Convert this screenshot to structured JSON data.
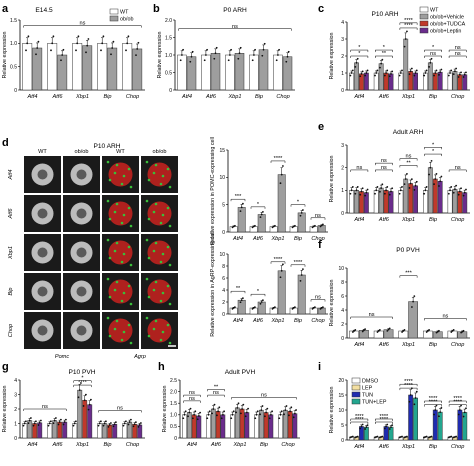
{
  "figure": {
    "micro": {
      "panel_label": "d",
      "title": "P10 ARH",
      "col_labels": [
        "WT",
        "ob/ob",
        "WT",
        "ob/ob"
      ],
      "row_labels": [
        "Atf4",
        "Atf6",
        "Xbp1",
        "Bip",
        "Chop"
      ],
      "bottom_labels": [
        "Pomc",
        "Agrp"
      ]
    }
  },
  "chart_data": [
    {
      "id": "a",
      "type": "bar",
      "panel_label": "a",
      "title": "E14.5",
      "ylabel": "Relative expression",
      "categories": [
        "Atf4",
        "Atf6",
        "Xbp1",
        "Bip",
        "Chop"
      ],
      "ylim": [
        0,
        1.5
      ],
      "yticks": [
        "0",
        "0.5",
        "1.0",
        "1.5"
      ],
      "series": [
        {
          "name": "WT",
          "color": "#ffffff",
          "values": [
            1.0,
            1.0,
            1.0,
            1.0,
            1.0
          ]
        },
        {
          "name": "ob/ob",
          "color": "#9e9e9e",
          "values": [
            0.9,
            0.75,
            0.95,
            0.9,
            0.88
          ]
        }
      ],
      "annotations": [
        {
          "text": "ns",
          "from": 0,
          "to": 4,
          "y": 1.38
        }
      ],
      "legend": {
        "position": "top-right",
        "entries": [
          "WT",
          "ob/ob"
        ]
      }
    },
    {
      "id": "b",
      "type": "bar",
      "panel_label": "b",
      "title": "P0 ARH",
      "ylabel": "Relative expression",
      "categories": [
        "Atf4",
        "Atf6",
        "Xbp1",
        "Bip",
        "Chop"
      ],
      "ylim": [
        0,
        2.0
      ],
      "yticks": [
        "0",
        "0.5",
        "1.0",
        "1.5",
        "2.0"
      ],
      "series": [
        {
          "name": "WT",
          "color": "#ffffff",
          "values": [
            1.0,
            1.0,
            1.0,
            1.0,
            1.0
          ]
        },
        {
          "name": "ob/ob",
          "color": "#9e9e9e",
          "values": [
            0.95,
            1.05,
            1.05,
            1.15,
            0.95
          ]
        }
      ],
      "annotations": [
        {
          "text": "ns",
          "from": 0,
          "to": 4,
          "y": 1.75
        }
      ]
    },
    {
      "id": "c",
      "type": "bar",
      "panel_label": "c",
      "title": "P10 ARH",
      "ylabel": "Relative expression",
      "categories": [
        "Atf4",
        "Atf6",
        "Xbp1",
        "Bip",
        "Chop"
      ],
      "ylim": [
        0,
        4
      ],
      "yticks": [
        "0",
        "1",
        "2",
        "3",
        "4"
      ],
      "series": [
        {
          "name": "WT",
          "color": "#ffffff",
          "values": [
            1.0,
            1.0,
            1.0,
            1.0,
            1.0
          ]
        },
        {
          "name": "ob/ob+Vehicle",
          "color": "#9e9e9e",
          "values": [
            1.6,
            1.55,
            3.0,
            1.6,
            1.1
          ]
        },
        {
          "name": "ob/ob+TUDCA",
          "color": "#c0392b",
          "values": [
            0.95,
            1.0,
            1.1,
            1.0,
            0.9
          ]
        },
        {
          "name": "ob/ob+Leptin",
          "color": "#6a2c8c",
          "values": [
            1.0,
            0.95,
            1.0,
            1.05,
            0.9
          ]
        }
      ],
      "annotations": [
        {
          "text": "*",
          "cat": 0,
          "y": 2.0
        },
        {
          "text": "*",
          "cat": 0,
          "y": 2.35
        },
        {
          "text": "**",
          "cat": 1,
          "y": 2.0
        },
        {
          "text": "*",
          "cat": 1,
          "y": 2.35
        },
        {
          "text": "****",
          "cat": 2,
          "y": 3.65
        },
        {
          "text": "****",
          "cat": 2,
          "y": 3.95
        },
        {
          "text": "ns",
          "cat": 3,
          "y": 2.0
        },
        {
          "text": "*",
          "cat": 3,
          "y": 2.35
        },
        {
          "text": "ns",
          "cat": 4,
          "y": 2.0
        },
        {
          "text": "ns",
          "cat": 4,
          "y": 2.35
        }
      ],
      "legend": {
        "position": "top-right",
        "entries": [
          "WT",
          "ob/ob+Vehicle",
          "ob/ob+TUDCA",
          "ob/ob+Leptin"
        ]
      }
    },
    {
      "id": "d1",
      "type": "bar",
      "panel_label": "",
      "ylabel": "Relative expression in POMC-expressing cell",
      "categories": [
        "Atf4",
        "Atf6",
        "Xbp1",
        "Bip",
        "Chop"
      ],
      "ylim": [
        0,
        15
      ],
      "yticks": [
        "0",
        "5",
        "10",
        "15"
      ],
      "series": [
        {
          "name": "WT",
          "color": "#ffffff",
          "values": [
            1.0,
            1.0,
            1.0,
            1.0,
            1.0
          ]
        },
        {
          "name": "ob/ob",
          "color": "#9e9e9e",
          "values": [
            4.5,
            3.2,
            10.5,
            3.5,
            1.2
          ]
        }
      ],
      "annotations": [
        {
          "text": "***",
          "cat": 0,
          "y": 6.0
        },
        {
          "text": "*",
          "cat": 1,
          "y": 4.6
        },
        {
          "text": "****",
          "cat": 2,
          "y": 13.0
        },
        {
          "text": "*",
          "cat": 3,
          "y": 5.0
        },
        {
          "text": "ns",
          "cat": 4,
          "y": 2.6
        }
      ]
    },
    {
      "id": "d2",
      "type": "bar",
      "panel_label": "",
      "ylabel": "Relative expression in AgRP-expressing cell",
      "categories": [
        "Atf4",
        "Atf6",
        "Xbp1",
        "Bip",
        "Chop"
      ],
      "ylim": [
        0,
        10
      ],
      "yticks": [
        "0",
        "2",
        "4",
        "6",
        "8",
        "10"
      ],
      "series": [
        {
          "name": "WT",
          "color": "#ffffff",
          "values": [
            1.0,
            1.0,
            1.0,
            1.0,
            1.0
          ]
        },
        {
          "name": "ob/ob",
          "color": "#9e9e9e",
          "values": [
            2.3,
            2.0,
            7.2,
            6.5,
            1.0
          ]
        }
      ],
      "annotations": [
        {
          "text": "**",
          "cat": 0,
          "y": 3.8
        },
        {
          "text": "*",
          "cat": 1,
          "y": 3.3
        },
        {
          "text": "****",
          "cat": 2,
          "y": 8.7
        },
        {
          "text": "****",
          "cat": 3,
          "y": 8.2
        },
        {
          "text": "ns",
          "cat": 4,
          "y": 2.4
        }
      ]
    },
    {
      "id": "e",
      "type": "bar",
      "panel_label": "e",
      "title": "Adult ARH",
      "ylabel": "Relative expression",
      "categories": [
        "Atf4",
        "Atf6",
        "Xbp1",
        "Bip",
        "Chop"
      ],
      "ylim": [
        0,
        3
      ],
      "yticks": [
        "0",
        "1",
        "2",
        "3"
      ],
      "series": [
        {
          "name": "WT",
          "color": "#ffffff",
          "values": [
            1.0,
            1.0,
            1.0,
            1.0,
            1.0
          ]
        },
        {
          "name": "ob/ob+Vehicle",
          "color": "#9e9e9e",
          "values": [
            1.0,
            1.1,
            1.5,
            2.0,
            1.05
          ]
        },
        {
          "name": "ob/ob+TUDCA",
          "color": "#c0392b",
          "values": [
            0.95,
            1.0,
            1.3,
            1.5,
            0.95
          ]
        },
        {
          "name": "ob/ob+Leptin",
          "color": "#6a2c8c",
          "values": [
            0.9,
            0.95,
            1.2,
            1.4,
            0.9
          ]
        }
      ],
      "annotations": [
        {
          "text": "ns",
          "cat": 0,
          "y": 1.9
        },
        {
          "text": "ns",
          "cat": 1,
          "y": 1.9
        },
        {
          "text": "ns",
          "cat": 1,
          "y": 2.2
        },
        {
          "text": "**",
          "cat": 2,
          "y": 2.1
        },
        {
          "text": "ns",
          "cat": 2,
          "y": 2.4
        },
        {
          "text": "*",
          "cat": 3,
          "y": 2.6
        },
        {
          "text": "*",
          "cat": 3,
          "y": 2.9
        },
        {
          "text": "ns",
          "cat": 4,
          "y": 1.9
        }
      ]
    },
    {
      "id": "f",
      "type": "bar",
      "panel_label": "f",
      "title": "P0 PVH",
      "ylabel": "Relative expression",
      "categories": [
        "Atf4",
        "Atf6",
        "Xbp1",
        "Bip",
        "Chop"
      ],
      "ylim": [
        0,
        10
      ],
      "yticks": [
        "0",
        "2",
        "4",
        "6",
        "8",
        "10"
      ],
      "series": [
        {
          "name": "WT",
          "color": "#ffffff",
          "values": [
            1.0,
            1.0,
            1.0,
            1.0,
            1.0
          ]
        },
        {
          "name": "ob/ob",
          "color": "#9e9e9e",
          "values": [
            1.1,
            1.2,
            5.2,
            0.9,
            0.9
          ]
        }
      ],
      "annotations": [
        {
          "text": "ns",
          "from": 0,
          "to": 1,
          "y": 3.0
        },
        {
          "text": "***",
          "cat": 2,
          "y": 8.9
        },
        {
          "text": "ns",
          "from": 3,
          "to": 4,
          "y": 2.8
        }
      ]
    },
    {
      "id": "g",
      "type": "bar",
      "panel_label": "g",
      "title": "P10 PVH",
      "ylabel": "Relative expression",
      "categories": [
        "Atf4",
        "Atf6",
        "Xbp1",
        "Bip",
        "Chop"
      ],
      "ylim": [
        0,
        4
      ],
      "yticks": [
        "0",
        "1",
        "2",
        "3",
        "4"
      ],
      "series": [
        {
          "name": "WT",
          "color": "#ffffff",
          "values": [
            1.0,
            1.0,
            1.0,
            1.0,
            1.0
          ]
        },
        {
          "name": "ob/ob+Vehicle",
          "color": "#9e9e9e",
          "values": [
            1.2,
            1.2,
            3.3,
            1.0,
            1.1
          ]
        },
        {
          "name": "ob/ob+TUDCA",
          "color": "#c0392b",
          "values": [
            1.0,
            1.1,
            2.6,
            0.9,
            0.95
          ]
        },
        {
          "name": "ob/ob+Leptin",
          "color": "#6a2c8c",
          "values": [
            1.05,
            1.1,
            2.3,
            0.95,
            0.9
          ]
        }
      ],
      "annotations": [
        {
          "text": "ns",
          "from": 0,
          "to": 1,
          "y": 2.0
        },
        {
          "text": "****",
          "cat": 2,
          "y": 3.65
        },
        {
          "text": "*",
          "cat": 2,
          "y": 3.95
        },
        {
          "text": "ns",
          "from": 3,
          "to": 4,
          "y": 1.9
        }
      ]
    },
    {
      "id": "h",
      "type": "bar",
      "panel_label": "h",
      "title": "Adult PVH",
      "ylabel": "Relative expression",
      "categories": [
        "Atf4",
        "Atf6",
        "Xbp1",
        "Bip",
        "Chop"
      ],
      "ylim": [
        0,
        2.5
      ],
      "yticks": [
        "0",
        "0.5",
        "1.0",
        "1.5",
        "2.0",
        "2.5"
      ],
      "series": [
        {
          "name": "WT",
          "color": "#ffffff",
          "values": [
            1.0,
            1.0,
            1.0,
            1.0,
            1.0
          ]
        },
        {
          "name": "ob/ob+Vehicle",
          "color": "#9e9e9e",
          "values": [
            1.1,
            1.25,
            1.3,
            1.2,
            1.2
          ]
        },
        {
          "name": "ob/ob+TUDCA",
          "color": "#c0392b",
          "values": [
            1.0,
            1.15,
            1.25,
            1.1,
            1.15
          ]
        },
        {
          "name": "ob/ob+Leptin",
          "color": "#6a2c8c",
          "values": [
            0.95,
            1.0,
            1.1,
            1.0,
            1.05
          ]
        }
      ],
      "annotations": [
        {
          "text": "ns",
          "cat": 0,
          "y": 1.6
        },
        {
          "text": "ns",
          "cat": 0,
          "y": 1.85
        },
        {
          "text": "ns",
          "cat": 1,
          "y": 1.85
        },
        {
          "text": "**",
          "cat": 1,
          "y": 2.1
        },
        {
          "text": "ns",
          "from": 2,
          "to": 4,
          "y": 1.75
        }
      ]
    },
    {
      "id": "i",
      "type": "bar",
      "panel_label": "i",
      "ylabel": "Relative expression",
      "categories": [
        "Atf4",
        "Atf6",
        "Xbp1",
        "Bip",
        "Chop"
      ],
      "ylim": [
        0,
        20
      ],
      "yticks": [
        "0",
        "5",
        "10",
        "15",
        "20"
      ],
      "series": [
        {
          "name": "DMSO",
          "color": "#ffffff",
          "values": [
            1.0,
            1.0,
            1.0,
            1.0,
            1.0
          ]
        },
        {
          "name": "LEP",
          "color": "#f3dfa2",
          "values": [
            1.0,
            1.0,
            1.0,
            1.0,
            1.0
          ]
        },
        {
          "name": "TUN",
          "color": "#1f2bb0",
          "values": [
            4.5,
            4.5,
            15.0,
            10.0,
            10.0
          ]
        },
        {
          "name": "TUN+LEP",
          "color": "#23a68f",
          "values": [
            4.3,
            4.3,
            14.0,
            9.3,
            9.2
          ]
        }
      ],
      "annotations": [
        {
          "text": "****",
          "cat": 0,
          "y": 6.0
        },
        {
          "text": "****",
          "cat": 0,
          "y": 7.0
        },
        {
          "text": "****",
          "cat": 1,
          "y": 6.0
        },
        {
          "text": "****",
          "cat": 1,
          "y": 7.0
        },
        {
          "text": "****",
          "cat": 2,
          "y": 17.3
        },
        {
          "text": "****",
          "cat": 2,
          "y": 18.6
        },
        {
          "text": "****",
          "cat": 3,
          "y": 11.8
        },
        {
          "text": "****",
          "cat": 3,
          "y": 13.0
        },
        {
          "text": "****",
          "cat": 4,
          "y": 11.8
        },
        {
          "text": "****",
          "cat": 4,
          "y": 13.0
        }
      ],
      "legend": {
        "position": "top-left",
        "entries": [
          "DMSO",
          "LEP",
          "TUN",
          "TUN+LEP"
        ]
      }
    }
  ]
}
